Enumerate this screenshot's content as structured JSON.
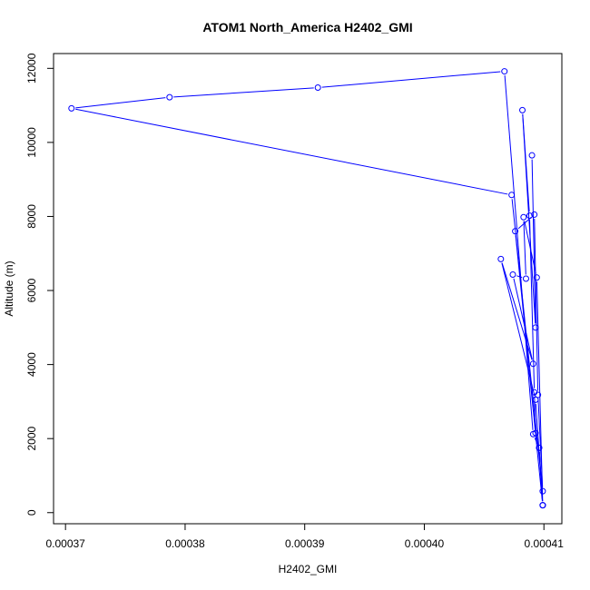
{
  "chart_data": {
    "type": "scatter",
    "title": "ATOM1 North_America H2402_GMI",
    "xlabel": "H2402_GMI",
    "ylabel": "Altitude (m)",
    "xlim": [
      0.000369,
      0.0004115
    ],
    "ylim": [
      -300,
      12400
    ],
    "x_ticks": [
      0.00037,
      0.00038,
      0.00039,
      0.0004,
      0.00041
    ],
    "x_tick_labels": [
      "0.00037",
      "0.00038",
      "0.00039",
      "0.00040",
      "0.00041"
    ],
    "y_ticks": [
      0,
      2000,
      4000,
      6000,
      8000,
      10000,
      12000
    ],
    "y_tick_labels": [
      "0",
      "2000",
      "4000",
      "6000",
      "8000",
      "10000",
      "12000"
    ],
    "grid": false,
    "connected": true,
    "color": "#0000ff",
    "series": [
      {
        "x": [
          0.000409,
          0.0004093,
          0.0004082,
          0.0004088,
          0.0004092,
          0.0004093,
          0.0004096,
          0.0004099,
          0.0004094,
          0.0004083,
          0.0004085,
          0.0004074,
          0.0004091,
          0.0004064,
          0.0004093,
          0.0004099,
          0.0004076,
          0.0004092,
          0.0004095,
          0.0004099,
          0.0004073,
          0.0003705,
          0.0003787,
          0.0003911,
          0.0004067,
          0.0004091,
          0.0004096,
          0.0004099
        ],
        "y": [
          9650,
          5000,
          10870,
          8020,
          3250,
          2150,
          1750,
          200,
          6350,
          7980,
          6320,
          6430,
          4020,
          6850,
          3050,
          200,
          7600,
          8050,
          3180,
          580,
          8580,
          10920,
          11220,
          11480,
          11920,
          2120,
          1750,
          200
        ]
      }
    ]
  }
}
